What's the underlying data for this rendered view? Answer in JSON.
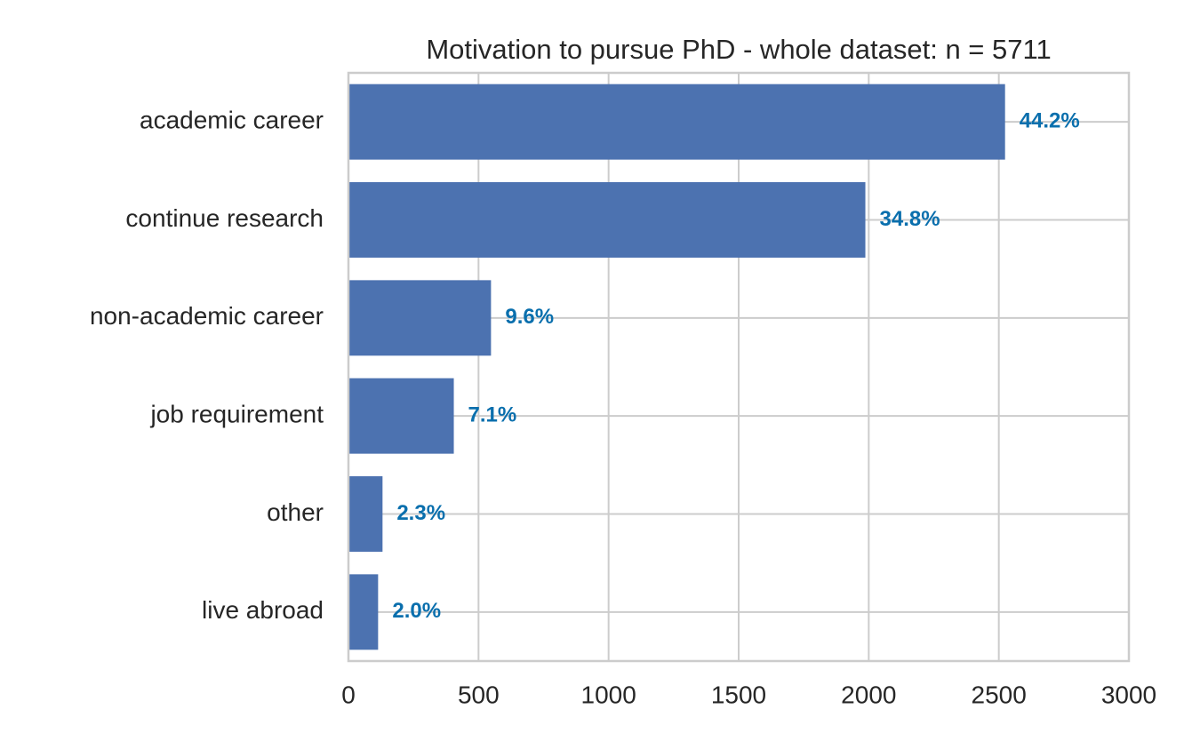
{
  "chart_data": {
    "type": "barh",
    "title": "Motivation to pursue PhD - whole dataset: n = 5711",
    "categories": [
      "academic career",
      "continue research",
      "non-academic career",
      "job requirement",
      "other",
      "live abroad"
    ],
    "values": [
      2524,
      1987,
      548,
      405,
      131,
      114
    ],
    "value_labels": [
      "44.2%",
      "34.8%",
      "9.6%",
      "7.1%",
      "2.3%",
      "2.0%"
    ],
    "color": "#4c72b0",
    "label_color": "#0a6fad",
    "xlim": [
      0,
      3000
    ],
    "xticks": [
      0,
      500,
      1000,
      1500,
      2000,
      2500,
      3000
    ],
    "grid": true
  }
}
